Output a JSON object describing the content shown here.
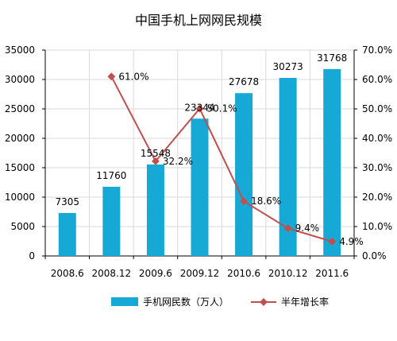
{
  "chart_data": {
    "type": "bar",
    "title": "中国手机上网网民规模",
    "categories": [
      "2008.6",
      "2008.12",
      "2009.6",
      "2009.12",
      "2010.6",
      "2010.12",
      "2011.6"
    ],
    "series": [
      {
        "name": "手机网民数（万人）",
        "type": "bar",
        "axis": "left",
        "values": [
          7305,
          11760,
          15548,
          23344,
          27678,
          30273,
          31768
        ],
        "labels": [
          "7305",
          "11760",
          "15548",
          "23344",
          "27678",
          "30273",
          "31768"
        ]
      },
      {
        "name": "半年增长率",
        "type": "line",
        "axis": "right",
        "values": [
          null,
          61.0,
          32.2,
          50.1,
          18.6,
          9.4,
          4.9
        ],
        "labels": [
          "",
          "61.0%",
          "32.2%",
          "50.1%",
          "18.6%",
          "9.4%",
          "4.9%"
        ]
      }
    ],
    "y_left": {
      "min": 0,
      "max": 35000,
      "ticks": [
        "0",
        "5000",
        "10000",
        "15000",
        "20000",
        "25000",
        "30000",
        "35000"
      ]
    },
    "y_right": {
      "min": 0,
      "max": 70,
      "ticks": [
        "0.0%",
        "10.0%",
        "20.0%",
        "30.0%",
        "40.0%",
        "50.0%",
        "60.0%",
        "70.0%"
      ]
    },
    "grid": true,
    "legend": "bottom",
    "colors": {
      "bar": "#17a9d6",
      "line": "#c0504d",
      "grid": "#d9d9d9",
      "axis": "#000000"
    }
  }
}
